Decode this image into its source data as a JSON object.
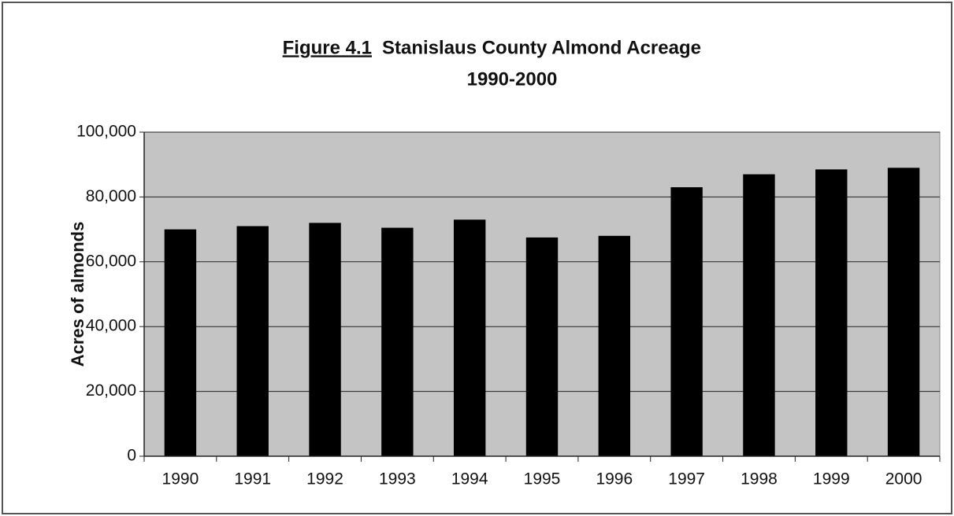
{
  "chart_data": {
    "type": "bar",
    "figure_label": "Figure 4.1",
    "title": "Stanislaus County Almond Acreage",
    "subtitle": "1990-2000",
    "y_label": "Acres of almonds",
    "categories": [
      "1990",
      "1991",
      "1992",
      "1993",
      "1994",
      "1995",
      "1996",
      "1997",
      "1998",
      "1999",
      "2000"
    ],
    "values": [
      70000,
      71000,
      72000,
      70500,
      73000,
      67500,
      68000,
      83000,
      87000,
      88500,
      89000
    ],
    "color": "#000000",
    "plot_background": "#c4c4c4",
    "ylim": [
      0,
      100000
    ],
    "yticks": [
      0,
      {
        "value": 20000,
        "label": "20,000"
      },
      {
        "value": 40000,
        "label": "40,000"
      },
      {
        "value": 60000,
        "label": "60,000"
      },
      {
        "value": 80000,
        "label": "80,000"
      },
      {
        "value": 100000,
        "label": "100,000"
      }
    ],
    "grid": true
  }
}
